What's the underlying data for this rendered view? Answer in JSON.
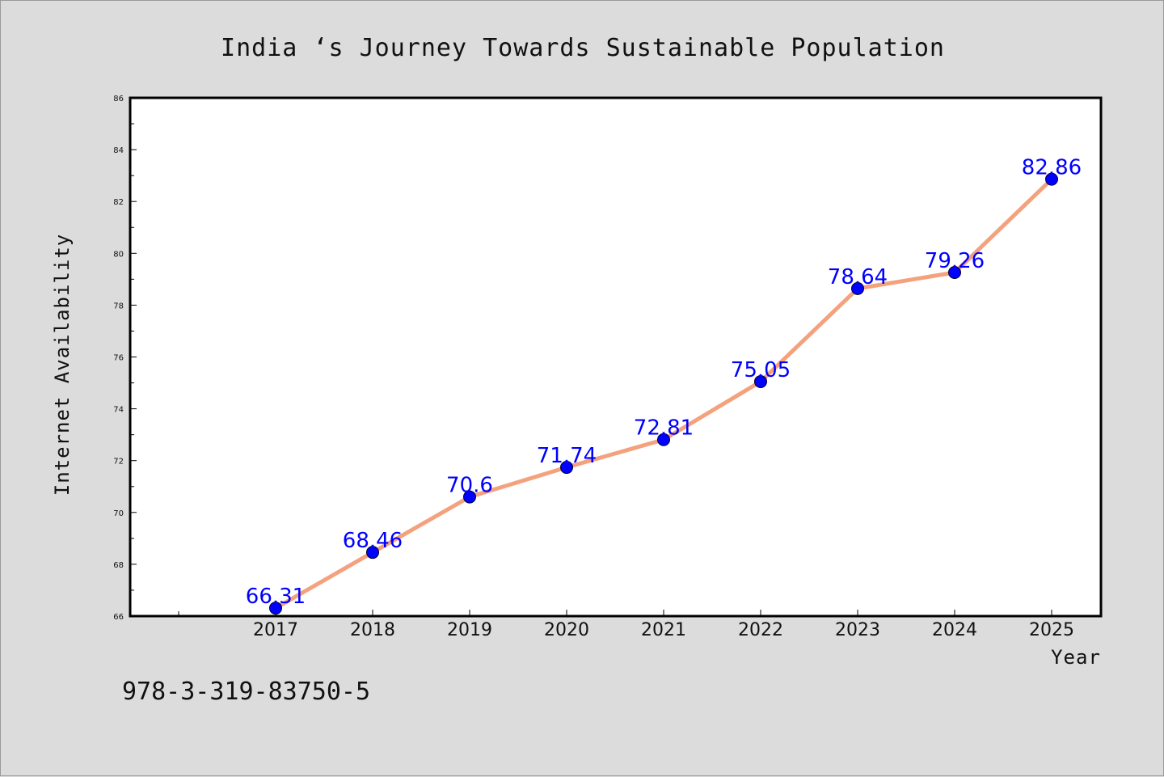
{
  "chart_data": {
    "type": "line",
    "title": "India ‘s Journey Towards Sustainable Population",
    "xlabel": "Year",
    "ylabel": "Internet Availability",
    "categories": [
      "2017",
      "2018",
      "2019",
      "2020",
      "2021",
      "2022",
      "2023",
      "2024",
      "2025"
    ],
    "series": [
      {
        "values": [
          66.31,
          68.46,
          70.6,
          71.74,
          72.81,
          75.05,
          78.64,
          79.26,
          82.86
        ],
        "labels": [
          "66.31",
          "68.46",
          "70.6",
          "71.74",
          "72.81",
          "75.05",
          "78.64",
          "79.26",
          "82.86"
        ],
        "line_color": "#f4a27e",
        "marker_color": "#0000ff"
      }
    ],
    "ylim": [
      66,
      86
    ],
    "yticks": [
      66,
      68,
      70,
      72,
      74,
      76,
      78,
      80,
      82,
      84,
      86
    ],
    "ytick_labels": [
      "66",
      "68",
      "70",
      "72",
      "74",
      "76",
      "78",
      "80",
      "82",
      "84",
      "86"
    ],
    "grid": false,
    "legend": "none"
  },
  "footer": {
    "identifier": "978-3-319-83750-5"
  },
  "colors": {
    "background": "#dcdcdc",
    "plot_background": "#ffffff",
    "frame": "#000000",
    "label_text": "#0000ff"
  }
}
